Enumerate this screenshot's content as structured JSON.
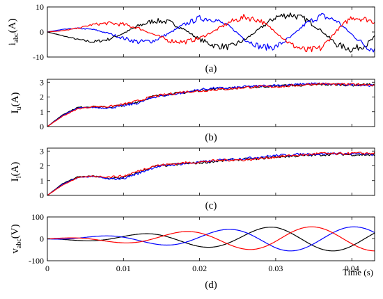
{
  "colors": {
    "black": "#000000",
    "blue": "#0000ff",
    "red": "#ff0000"
  },
  "xlabel": "Time (s)",
  "chart_data": [
    {
      "type": "line",
      "caption": "(a)",
      "ylabel": {
        "main": "i",
        "sub": "abc",
        "unit": "(A)"
      },
      "xlim": [
        0,
        0.043
      ],
      "ylim": [
        -10,
        10
      ],
      "yticks": [
        "10",
        "0",
        "-10"
      ],
      "yticks_values": [
        10,
        0,
        -10
      ],
      "series": [
        {
          "color": "black",
          "x": [
            0,
            0.002,
            0.004,
            0.006,
            0.008,
            0.01,
            0.012,
            0.014,
            0.016,
            0.018,
            0.02,
            0.022,
            0.024,
            0.026,
            0.028,
            0.03,
            0.032,
            0.034,
            0.036,
            0.038,
            0.04,
            0.042,
            0.043
          ],
          "y": [
            0,
            -1.5,
            -3,
            -4,
            -3,
            -0.5,
            2.5,
            4.5,
            4,
            1,
            -3,
            -5.5,
            -6,
            -3,
            1.5,
            6,
            7,
            5,
            0.5,
            -5,
            -7,
            -5,
            -2
          ]
        },
        {
          "color": "blue",
          "x": [
            0,
            0.002,
            0.004,
            0.006,
            0.008,
            0.01,
            0.012,
            0.014,
            0.016,
            0.018,
            0.02,
            0.022,
            0.024,
            0.026,
            0.028,
            0.03,
            0.032,
            0.034,
            0.036,
            0.038,
            0.04,
            0.042,
            0.043
          ],
          "y": [
            0,
            1,
            1.5,
            1,
            -0.5,
            -2.5,
            -4,
            -3.5,
            -0.5,
            3,
            5.5,
            5,
            2,
            -3,
            -6,
            -6,
            -2,
            3.5,
            6.5,
            4.5,
            -1,
            -6,
            -7
          ]
        },
        {
          "color": "red",
          "x": [
            0,
            0.002,
            0.004,
            0.006,
            0.008,
            0.01,
            0.012,
            0.014,
            0.016,
            0.018,
            0.02,
            0.022,
            0.024,
            0.026,
            0.028,
            0.03,
            0.032,
            0.034,
            0.036,
            0.038,
            0.04,
            0.042,
            0.043
          ],
          "y": [
            0,
            0.5,
            1.5,
            3,
            3.5,
            3,
            1.5,
            -1,
            -3.5,
            -4,
            -2.5,
            0.5,
            4,
            6,
            4.5,
            0,
            -5,
            -7.5,
            -6.5,
            0.5,
            6,
            5,
            4
          ]
        }
      ]
    },
    {
      "type": "line",
      "caption": "(b)",
      "ylabel": {
        "main": "I",
        "sub": "u",
        "unit": "(A)"
      },
      "xlim": [
        0,
        0.043
      ],
      "ylim": [
        0,
        3.2
      ],
      "yticks": [
        "3",
        "2",
        "1",
        "0"
      ],
      "yticks_values": [
        3,
        2,
        1,
        0
      ],
      "series": [
        {
          "color": "black",
          "x": [
            0,
            0.002,
            0.004,
            0.006,
            0.008,
            0.01,
            0.012,
            0.014,
            0.016,
            0.018,
            0.02,
            0.022,
            0.024,
            0.026,
            0.028,
            0.03,
            0.032,
            0.034,
            0.036,
            0.038,
            0.04,
            0.042,
            0.043
          ],
          "y": [
            0,
            0.8,
            1.3,
            1.35,
            1.3,
            1.45,
            1.7,
            2.05,
            2.2,
            2.3,
            2.45,
            2.55,
            2.6,
            2.65,
            2.7,
            2.75,
            2.8,
            2.8,
            2.85,
            2.85,
            2.8,
            2.85,
            2.8
          ]
        },
        {
          "color": "blue",
          "x": [
            0,
            0.002,
            0.004,
            0.006,
            0.008,
            0.01,
            0.012,
            0.014,
            0.016,
            0.018,
            0.02,
            0.022,
            0.024,
            0.026,
            0.028,
            0.03,
            0.032,
            0.034,
            0.036,
            0.038,
            0.04,
            0.042,
            0.043
          ],
          "y": [
            0,
            0.75,
            1.25,
            1.3,
            1.25,
            1.4,
            1.6,
            2.0,
            2.15,
            2.3,
            2.5,
            2.6,
            2.6,
            2.7,
            2.75,
            2.8,
            2.8,
            2.9,
            2.9,
            2.85,
            2.85,
            2.8,
            2.75
          ]
        },
        {
          "color": "red",
          "x": [
            0,
            0.002,
            0.004,
            0.006,
            0.008,
            0.01,
            0.012,
            0.014,
            0.016,
            0.018,
            0.02,
            0.022,
            0.024,
            0.026,
            0.028,
            0.03,
            0.032,
            0.034,
            0.036,
            0.038,
            0.04,
            0.042,
            0.043
          ],
          "y": [
            0,
            0.7,
            1.2,
            1.35,
            1.35,
            1.5,
            1.75,
            2.05,
            2.2,
            2.35,
            2.4,
            2.5,
            2.55,
            2.65,
            2.7,
            2.7,
            2.75,
            2.85,
            2.9,
            2.85,
            2.85,
            2.85,
            2.8
          ]
        }
      ]
    },
    {
      "type": "line",
      "caption": "(c)",
      "ylabel": {
        "main": "I",
        "sub": "l",
        "unit": "(A)"
      },
      "xlim": [
        0,
        0.043
      ],
      "ylim": [
        0,
        3.2
      ],
      "yticks": [
        "3",
        "2",
        "1",
        "0"
      ],
      "yticks_values": [
        3,
        2,
        1,
        0
      ],
      "series": [
        {
          "color": "black",
          "x": [
            0,
            0.002,
            0.004,
            0.006,
            0.008,
            0.01,
            0.012,
            0.014,
            0.016,
            0.018,
            0.02,
            0.022,
            0.024,
            0.026,
            0.028,
            0.03,
            0.032,
            0.034,
            0.036,
            0.038,
            0.04,
            0.042,
            0.043
          ],
          "y": [
            0,
            0.8,
            1.25,
            1.3,
            1.15,
            1.2,
            1.55,
            1.95,
            2.05,
            2.15,
            2.2,
            2.3,
            2.4,
            2.45,
            2.5,
            2.6,
            2.65,
            2.7,
            2.75,
            2.8,
            2.75,
            2.75,
            2.7
          ]
        },
        {
          "color": "blue",
          "x": [
            0,
            0.002,
            0.004,
            0.006,
            0.008,
            0.01,
            0.012,
            0.014,
            0.016,
            0.018,
            0.02,
            0.022,
            0.024,
            0.026,
            0.028,
            0.03,
            0.032,
            0.034,
            0.036,
            0.038,
            0.04,
            0.042,
            0.043
          ],
          "y": [
            0,
            0.75,
            1.2,
            1.3,
            1.1,
            1.15,
            1.5,
            1.9,
            2.05,
            2.15,
            2.25,
            2.35,
            2.45,
            2.5,
            2.6,
            2.7,
            2.75,
            2.8,
            2.8,
            2.85,
            2.8,
            2.8,
            2.75
          ]
        },
        {
          "color": "red",
          "x": [
            0,
            0.002,
            0.004,
            0.006,
            0.008,
            0.01,
            0.012,
            0.014,
            0.016,
            0.018,
            0.02,
            0.022,
            0.024,
            0.026,
            0.028,
            0.03,
            0.032,
            0.034,
            0.036,
            0.038,
            0.04,
            0.042,
            0.043
          ],
          "y": [
            0,
            0.7,
            1.2,
            1.3,
            1.25,
            1.3,
            1.65,
            2.0,
            2.1,
            2.2,
            2.25,
            2.35,
            2.4,
            2.4,
            2.5,
            2.6,
            2.7,
            2.75,
            2.85,
            2.8,
            2.85,
            2.85,
            2.85
          ]
        }
      ]
    },
    {
      "type": "line",
      "caption": "(d)",
      "ylabel": {
        "main": "v",
        "sub": "abc",
        "unit": "(V)"
      },
      "xlim": [
        0,
        0.043
      ],
      "ylim": [
        -100,
        100
      ],
      "yticks": [
        "100",
        "0",
        "-100"
      ],
      "yticks_values": [
        100,
        0,
        -100
      ],
      "xticks": [
        "0",
        "0.01",
        "0.02",
        "0.03",
        "0.04"
      ],
      "xticks_values": [
        0,
        0.01,
        0.02,
        0.03,
        0.04
      ],
      "series": [
        {
          "color": "black",
          "func": "vblack"
        },
        {
          "color": "blue",
          "func": "vblue"
        },
        {
          "color": "red",
          "func": "vred"
        }
      ]
    }
  ]
}
